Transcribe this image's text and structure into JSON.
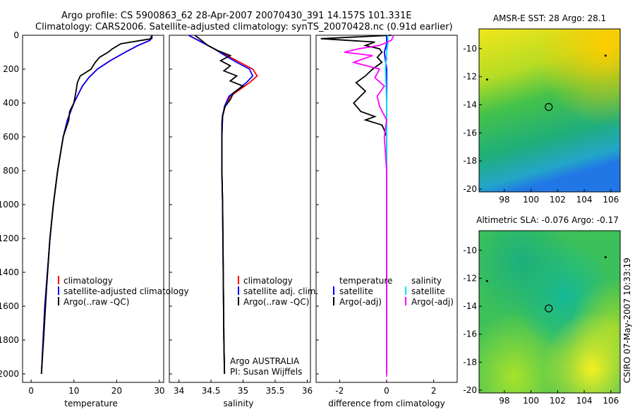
{
  "header": {
    "line1": "Argo profile: CS 5900863_62 28-Apr-2007 20070430_391 14.157S 101.331E",
    "line2": "Climatology: CARS2006. Satellite-adjusted climatology: synTS_20070428.nc (0.91d earlier)"
  },
  "side_label": "CSIRO 07-May-2007 10:33:19",
  "colors": {
    "clim": "#ff0000",
    "sat": "#0000ff",
    "argo": "#000000",
    "sal_sat": "#00e5ff",
    "sal_argo": "#ff00ff"
  },
  "chart_data": [
    {
      "type": "line",
      "id": "temperature",
      "xlabel": "temperature",
      "ylabel": "",
      "xlim": [
        -2,
        31
      ],
      "ylim": [
        0,
        2050
      ],
      "xticks": [
        0,
        10,
        20,
        30
      ],
      "yticks": [
        0,
        200,
        400,
        600,
        800,
        1000,
        1200,
        1400,
        1600,
        1800,
        2000
      ],
      "legend": [
        "climatology",
        "satellite-adjusted climatology",
        "Argo(..raw -QC)"
      ],
      "series": [
        {
          "name": "climatology",
          "color": "#ff0000",
          "depth": [
            0,
            30,
            60,
            100,
            150,
            200,
            250,
            300,
            400,
            500,
            600,
            800,
            1000,
            1200,
            1400,
            1600,
            1800,
            2000
          ],
          "values": [
            28.2,
            27.8,
            25,
            22,
            18.5,
            15.5,
            13.5,
            12,
            10,
            8.5,
            7.5,
            6.2,
            5.2,
            4.4,
            3.8,
            3.2,
            2.8,
            2.4
          ]
        },
        {
          "name": "satellite-adjusted climatology",
          "color": "#0000ff",
          "depth": [
            0,
            30,
            60,
            100,
            150,
            200,
            250,
            300,
            400,
            500,
            600,
            800,
            1000,
            1200,
            1400,
            1600,
            1800,
            2000
          ],
          "values": [
            28.2,
            27.8,
            25,
            22,
            18.5,
            15.5,
            13.5,
            12,
            10,
            8.5,
            7.5,
            6.2,
            5.2,
            4.4,
            3.8,
            3.2,
            2.8,
            2.4
          ]
        },
        {
          "name": "Argo(..raw -QC)",
          "color": "#000000",
          "depth": [
            0,
            20,
            50,
            80,
            100,
            130,
            160,
            200,
            240,
            280,
            330,
            400,
            450,
            500,
            600,
            800,
            1000,
            1200,
            1500,
            1800,
            2000
          ],
          "values": [
            28.3,
            28.2,
            21,
            19,
            18,
            16,
            15,
            14,
            11.5,
            10.8,
            10.5,
            10,
            9,
            8.8,
            7.5,
            6.2,
            5.2,
            4.4,
            3.6,
            2.9,
            2.4
          ]
        }
      ]
    },
    {
      "type": "line",
      "id": "salinity",
      "xlabel": "salinity",
      "ylabel": "",
      "xlim": [
        33.85,
        36.05
      ],
      "ylim": [
        0,
        2050
      ],
      "xticks": [
        34,
        34.5,
        35,
        35.5,
        36
      ],
      "legend": [
        "climatology",
        "satellite adj. clim.",
        "Argo(..raw -QC)"
      ],
      "annotation": [
        "Argo AUSTRALIA",
        "PI: Susan Wijffels"
      ],
      "series": [
        {
          "name": "climatology",
          "color": "#ff0000",
          "depth": [
            0,
            40,
            80,
            120,
            160,
            200,
            240,
            280,
            320,
            360,
            420,
            480,
            600,
            800,
            1000,
            1400,
            1800,
            2000
          ],
          "values": [
            34.15,
            34.35,
            34.55,
            34.75,
            34.95,
            35.15,
            35.22,
            35.1,
            34.95,
            34.8,
            34.72,
            34.68,
            34.67,
            34.67,
            34.68,
            34.69,
            34.7,
            34.71
          ]
        },
        {
          "name": "satellite adj. clim.",
          "color": "#0000ff",
          "depth": [
            0,
            40,
            80,
            120,
            160,
            200,
            240,
            280,
            320,
            360,
            420,
            480,
            600,
            800,
            1000,
            1400,
            1800,
            2000
          ],
          "values": [
            34.15,
            34.35,
            34.55,
            34.72,
            34.9,
            35.1,
            35.15,
            35.05,
            34.92,
            34.78,
            34.71,
            34.68,
            34.67,
            34.67,
            34.68,
            34.69,
            34.7,
            34.71
          ]
        },
        {
          "name": "Argo(..raw -QC)",
          "color": "#000000",
          "depth": [
            0,
            30,
            60,
            90,
            120,
            150,
            180,
            210,
            240,
            270,
            300,
            340,
            380,
            420,
            470,
            520,
            600,
            800,
            1000,
            1400,
            1800,
            2000
          ],
          "values": [
            34.25,
            34.35,
            34.45,
            34.6,
            34.8,
            34.65,
            34.8,
            34.7,
            34.9,
            34.8,
            35.0,
            34.85,
            34.8,
            34.72,
            34.68,
            34.67,
            34.67,
            34.67,
            34.68,
            34.69,
            34.7,
            34.71
          ]
        }
      ]
    },
    {
      "type": "line",
      "id": "difference",
      "xlabel": "difference from climatology",
      "ylabel": "",
      "xlim": [
        -3,
        3
      ],
      "ylim": [
        0,
        2050
      ],
      "xticks": [
        -2,
        0,
        2
      ],
      "legend_temperature": [
        "temperature",
        "satellite",
        "Argo(-adj)"
      ],
      "legend_salinity": [
        "salinity",
        "satellite",
        "Argo(-adj)"
      ],
      "series": [
        {
          "name": "temperature satellite",
          "color": "#0000ff",
          "depth": [
            0,
            50,
            100,
            200,
            400,
            800,
            1200,
            1600,
            2000
          ],
          "values": [
            0,
            0,
            -0.1,
            0,
            0,
            0,
            0,
            0,
            0
          ]
        },
        {
          "name": "temperature Argo(-adj)",
          "color": "#000000",
          "depth": [
            0,
            20,
            40,
            60,
            80,
            100,
            130,
            160,
            200,
            240,
            280,
            330,
            400,
            450,
            480,
            500,
            530,
            560,
            600,
            800,
            1000,
            2000
          ],
          "values": [
            0.2,
            -2.8,
            -0.5,
            -0.9,
            -0.3,
            -0.2,
            -0.4,
            -0.2,
            -0.6,
            -0.9,
            -1.3,
            -0.9,
            -1.4,
            -1.1,
            -0.5,
            -0.9,
            -0.2,
            -0.1,
            0,
            0,
            0,
            0
          ]
        },
        {
          "name": "salinity satellite",
          "color": "#00e5ff",
          "depth": [
            0,
            50,
            100,
            200,
            400,
            800,
            1200,
            1600,
            2000
          ],
          "values": [
            0.05,
            0.05,
            0,
            -0.05,
            0,
            0,
            0,
            0,
            0
          ]
        },
        {
          "name": "salinity Argo(-adj)",
          "color": "#ff00ff",
          "depth": [
            0,
            30,
            60,
            80,
            100,
            120,
            160,
            200,
            250,
            300,
            360,
            420,
            500,
            600,
            800,
            1200,
            1600,
            2000
          ],
          "values": [
            0.3,
            0.2,
            -0.3,
            -1.2,
            -1.8,
            -0.6,
            -1.4,
            -0.3,
            -0.5,
            -0.1,
            -0.4,
            -0.3,
            0,
            -0.1,
            0,
            0,
            0,
            0
          ]
        }
      ]
    },
    {
      "type": "heatmap",
      "id": "sst-map",
      "title": "AMSR-E SST: 28 Argo: 28.1",
      "xlim": [
        96.1,
        106.7
      ],
      "ylim": [
        -20.2,
        -8.6
      ],
      "xticks": [
        98,
        100,
        102,
        104,
        106
      ],
      "yticks": [
        -10,
        -12,
        -14,
        -16,
        -18,
        -20
      ],
      "marker": {
        "lon": 101.331,
        "lat": -14.157
      },
      "extra_points": [
        {
          "lon": 96.7,
          "lat": -12.2
        },
        {
          "lon": 105.6,
          "lat": -10.5
        }
      ]
    },
    {
      "type": "heatmap",
      "id": "sla-map",
      "title": "Altimetric SLA: -0.076 Argo: -0.17",
      "xlim": [
        96.1,
        106.7
      ],
      "ylim": [
        -20.2,
        -8.6
      ],
      "xticks": [
        98,
        100,
        102,
        104,
        106
      ],
      "yticks": [
        -10,
        -12,
        -14,
        -16,
        -18,
        -20
      ],
      "marker": {
        "lon": 101.331,
        "lat": -14.157
      },
      "extra_points": [
        {
          "lon": 96.7,
          "lat": -12.2
        },
        {
          "lon": 105.6,
          "lat": -10.5
        }
      ]
    }
  ]
}
